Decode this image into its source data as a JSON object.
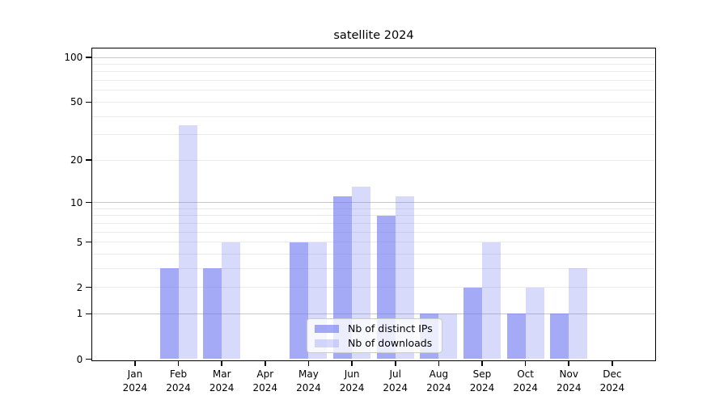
{
  "title": "satellite 2024",
  "chart_data": {
    "type": "bar",
    "title": "satellite 2024",
    "categories": [
      "Jan",
      "Feb",
      "Mar",
      "Apr",
      "May",
      "Jun",
      "Jul",
      "Aug",
      "Sep",
      "Oct",
      "Nov",
      "Dec"
    ],
    "category_year": "2024",
    "series": [
      {
        "name": "Nb of distinct IPs",
        "color": "#6e76f0",
        "alpha": 0.62,
        "values": [
          0,
          3,
          3,
          0,
          5,
          11,
          8,
          1,
          2,
          1,
          1,
          0
        ]
      },
      {
        "name": "Nb of downloads",
        "color": "#6e76f0",
        "alpha": 0.27,
        "values": [
          0,
          35,
          5,
          0,
          5,
          13,
          11,
          1,
          5,
          2,
          3,
          0
        ]
      }
    ],
    "xlabel": "",
    "ylabel": "",
    "yscale": "symlog",
    "yticks": [
      0,
      1,
      2,
      5,
      10,
      20,
      50,
      100
    ],
    "minor_yticks": [
      2,
      3,
      4,
      5,
      6,
      7,
      8,
      9,
      20,
      30,
      40,
      50,
      60,
      70,
      80,
      90
    ],
    "major_grid_yticks": [
      1,
      10,
      100
    ],
    "ylim": [
      0,
      116
    ],
    "grid": true,
    "legend_position": "lower-center",
    "colors": {
      "bar_dark_on_white": "#a5aaf3",
      "bar_light_on_white": "#dadef9",
      "major_grid": "#c8c8c8",
      "minor_grid": "#eaeaea",
      "axis": "#000000",
      "legend_border": "#cccccc"
    }
  }
}
